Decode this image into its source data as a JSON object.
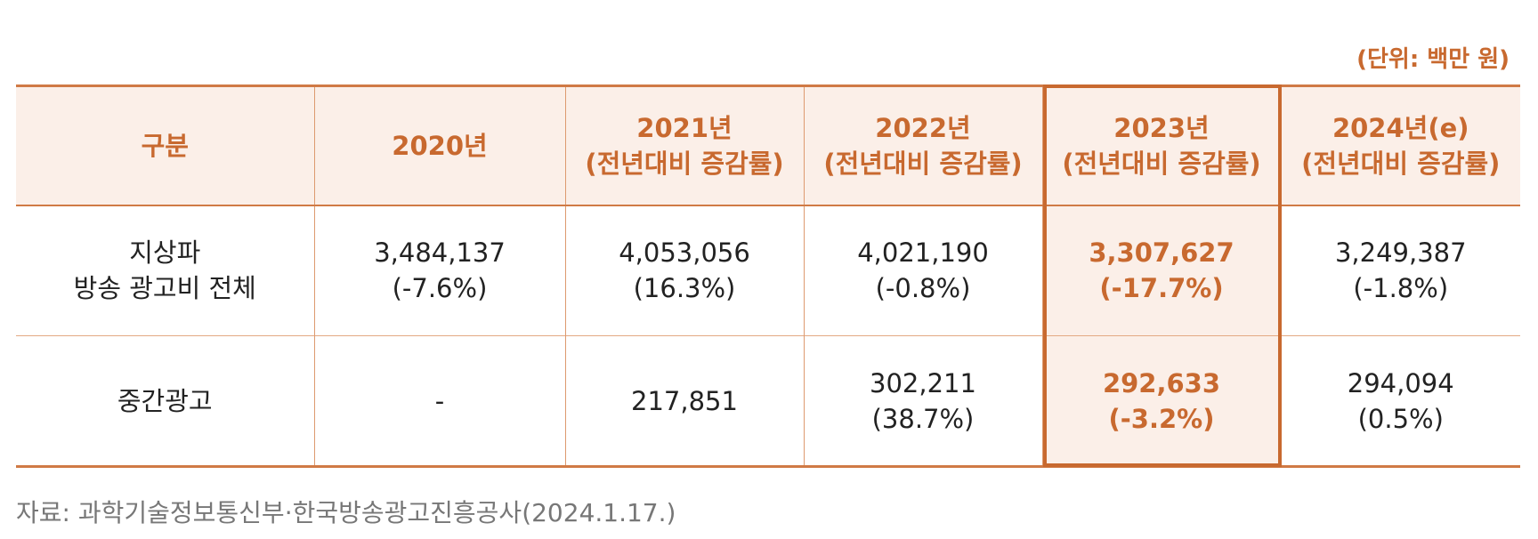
{
  "unit_label": "(단위: 백만 원)",
  "header": {
    "c0": [
      "구분"
    ],
    "c1": [
      "2020년"
    ],
    "c2": [
      "2021년",
      "(전년대비 증감률)"
    ],
    "c3": [
      "2022년",
      "(전년대비 증감률)"
    ],
    "c4": [
      "2023년",
      "(전년대비 증감률)"
    ],
    "c5": [
      "2024년(e)",
      "(전년대비 증감률)"
    ]
  },
  "rows": [
    {
      "label": [
        "지상파",
        "방송 광고비 전체"
      ],
      "y2020": [
        "3,484,137",
        "(-7.6%)"
      ],
      "y2021": [
        "4,053,056",
        "(16.3%)"
      ],
      "y2022": [
        "4,021,190",
        "(-0.8%)"
      ],
      "y2023": [
        "3,307,627",
        "(-17.7%)"
      ],
      "y2024": [
        "3,249,387",
        "(-1.8%)"
      ]
    },
    {
      "label": [
        "중간광고"
      ],
      "y2020": [
        "-"
      ],
      "y2021": [
        "217,851"
      ],
      "y2022": [
        "302,211",
        "(38.7%)"
      ],
      "y2023": [
        "292,633",
        "(-3.2%)"
      ],
      "y2024": [
        "294,094",
        "(0.5%)"
      ]
    }
  ],
  "source": "자료: 과학기술정보통신부·한국방송광고진흥공사(2024.1.17.)",
  "colors": {
    "accent": "#c8692f",
    "header_bg": "#fbefe8",
    "source_text": "#777777"
  }
}
